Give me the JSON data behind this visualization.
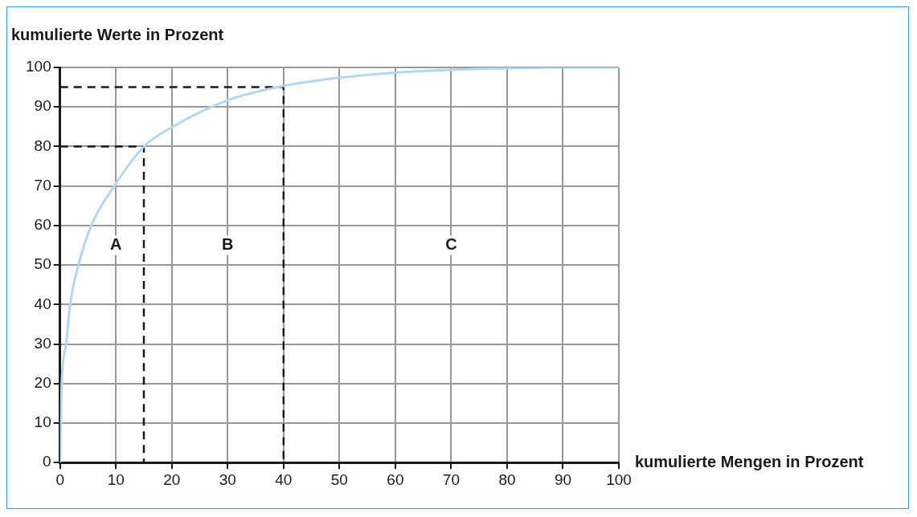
{
  "chart_data": {
    "type": "line",
    "xlabel": "kumulierte Mengen in Prozent",
    "ylabel": "kumulierte Werte in Prozent",
    "xlim": [
      0,
      100
    ],
    "ylim": [
      0,
      100
    ],
    "xticks": [
      0,
      10,
      20,
      30,
      40,
      50,
      60,
      70,
      80,
      90,
      100
    ],
    "yticks": [
      0,
      10,
      20,
      30,
      40,
      50,
      60,
      70,
      80,
      90,
      100
    ],
    "grid": true,
    "legend": false,
    "marker": "none",
    "series": [
      {
        "color": "#b3d7f0",
        "line_style": "solid",
        "x": [
          0,
          0.3,
          1.1,
          1.8,
          3.3,
          5.6,
          9.7,
          15,
          20.2,
          30,
          40,
          50,
          60,
          70,
          80,
          90,
          100
        ],
        "values": [
          0,
          20,
          30,
          40,
          50,
          60,
          70,
          80,
          85,
          91.7,
          95.3,
          97.4,
          98.7,
          99.4,
          99.8,
          100,
          100
        ]
      },
      {
        "color": "#1a1a1a",
        "line_style": "dashed",
        "x": [
          0,
          15,
          15
        ],
        "values": [
          80,
          80,
          0
        ]
      },
      {
        "color": "#1a1a1a",
        "line_style": "dashed",
        "x": [
          0,
          40,
          40
        ],
        "values": [
          95,
          95,
          0
        ]
      }
    ],
    "annotations": [
      {
        "text": "A",
        "x": 10,
        "y": 55
      },
      {
        "text": "B",
        "x": 30,
        "y": 55
      },
      {
        "text": "C",
        "x": 70,
        "y": 55
      }
    ]
  }
}
